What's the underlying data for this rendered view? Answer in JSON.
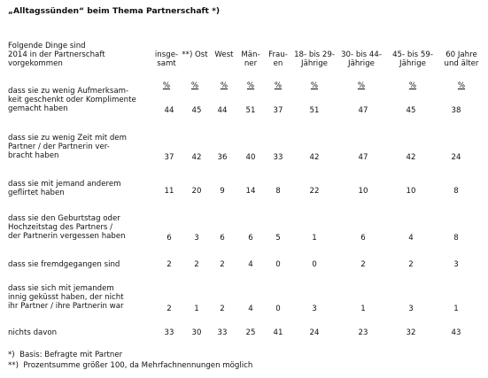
{
  "title": "„Alltagssünden“ beim Thema Partnerschaft *)",
  "stub_header": "Folgende Dinge sind\n2014 in der Partnerschaft\nvorgekommen",
  "columns": [
    {
      "label": "insge-\nsamt",
      "unit": "%"
    },
    {
      "label": "**) Ost",
      "unit": "%"
    },
    {
      "label": "West",
      "unit": "%"
    },
    {
      "label": "Män-\nner",
      "unit": "%"
    },
    {
      "label": "Frau-\nen",
      "unit": "%"
    },
    {
      "label": "18- bis 29-\nJährige",
      "unit": "%"
    },
    {
      "label": "30- bis 44-\nJährige",
      "unit": "%"
    },
    {
      "label": "45- bis 59-\nJährige",
      "unit": "%"
    },
    {
      "label": "60 Jahre\nund älter",
      "unit": "%"
    }
  ],
  "rows": [
    {
      "label": "dass sie zu wenig Aufmerksam-\nkeit geschenkt oder Komplimente\ngemacht haben",
      "values": [
        "44",
        "45",
        "44",
        "51",
        "37",
        "51",
        "47",
        "45",
        "38"
      ]
    },
    {
      "label": "dass sie zu wenig Zeit mit dem\nPartner / der Partnerin ver-\nbracht haben",
      "values": [
        "37",
        "42",
        "36",
        "40",
        "33",
        "42",
        "47",
        "42",
        "24"
      ]
    },
    {
      "label": "dass sie mit jemand anderem\ngeflirtet haben",
      "values": [
        "11",
        "20",
        "9",
        "14",
        "8",
        "22",
        "10",
        "10",
        "8"
      ]
    },
    {
      "label": "dass sie den Geburtstag oder\nHochzeitstag des Partners /\nder Partnerin vergessen haben",
      "values": [
        "6",
        "3",
        "6",
        "6",
        "5",
        "1",
        "6",
        "4",
        "8"
      ]
    },
    {
      "label": "dass sie fremdgegangen sind",
      "values": [
        "2",
        "2",
        "2",
        "4",
        "0",
        "0",
        "2",
        "2",
        "3"
      ]
    },
    {
      "label": "dass sie sich mit jemandem\ninnig geküsst haben, der nicht\nihr Partner / ihre Partnerin war",
      "values": [
        "2",
        "1",
        "2",
        "4",
        "0",
        "3",
        "1",
        "3",
        "1"
      ]
    },
    {
      "label": "nichts davon",
      "values": [
        "33",
        "30",
        "33",
        "25",
        "41",
        "24",
        "23",
        "32",
        "43"
      ]
    }
  ],
  "footnotes": [
    "*)  Basis: Befragte mit Partner",
    "**)  Prozentsumme größer 100, da Mehrfachnennungen möglich"
  ]
}
